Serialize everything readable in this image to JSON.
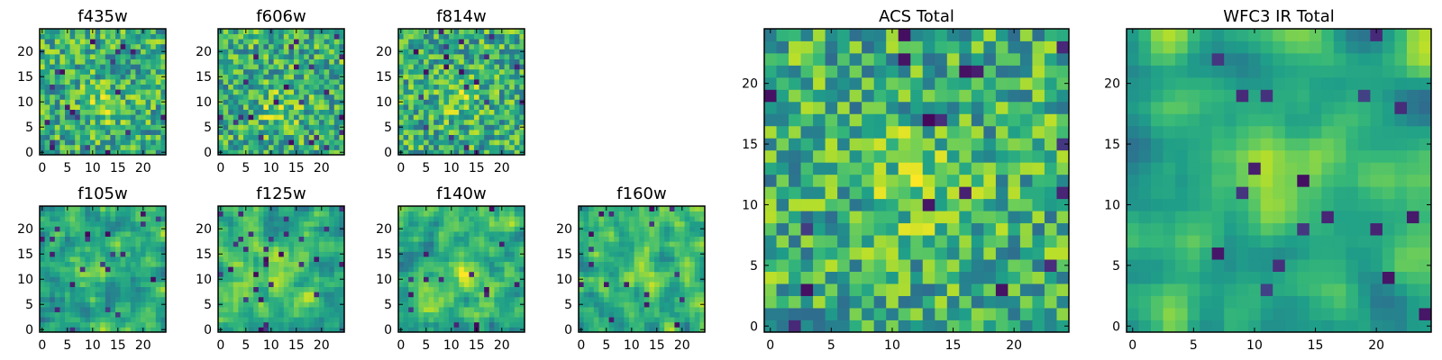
{
  "chart_data": [
    {
      "type": "heatmap",
      "title": "f435w",
      "grid_size": 25,
      "xticks": [
        0,
        5,
        10,
        15,
        20
      ],
      "yticks": [
        0,
        5,
        10,
        15,
        20
      ],
      "xlim": [
        0,
        25
      ],
      "ylim": [
        0,
        25
      ],
      "colormap": "viridis",
      "seed": 11,
      "smooth": 0,
      "hotspot": [
        0.5,
        0.4
      ]
    },
    {
      "type": "heatmap",
      "title": "f606w",
      "grid_size": 25,
      "xticks": [
        0,
        5,
        10,
        15,
        20
      ],
      "yticks": [
        0,
        5,
        10,
        15,
        20
      ],
      "xlim": [
        0,
        25
      ],
      "ylim": [
        0,
        25
      ],
      "colormap": "viridis",
      "seed": 23,
      "smooth": 0,
      "hotspot": [
        0.48,
        0.38
      ]
    },
    {
      "type": "heatmap",
      "title": "f814w",
      "grid_size": 25,
      "xticks": [
        0,
        5,
        10,
        15,
        20
      ],
      "yticks": [
        0,
        5,
        10,
        15,
        20
      ],
      "xlim": [
        0,
        25
      ],
      "ylim": [
        0,
        25
      ],
      "colormap": "viridis",
      "seed": 37,
      "smooth": 0,
      "hotspot": [
        0.5,
        0.45
      ]
    },
    {
      "type": "heatmap",
      "title": "f105w",
      "grid_size": 25,
      "xticks": [
        0,
        5,
        10,
        15,
        20
      ],
      "yticks": [
        0,
        5,
        10,
        15,
        20
      ],
      "xlim": [
        0,
        25
      ],
      "ylim": [
        0,
        25
      ],
      "colormap": "viridis",
      "seed": 41,
      "smooth": 1,
      "hotspot": [
        0.45,
        0.55
      ]
    },
    {
      "type": "heatmap",
      "title": "f125w",
      "grid_size": 25,
      "xticks": [
        0,
        5,
        10,
        15,
        20
      ],
      "yticks": [
        0,
        5,
        10,
        15,
        20
      ],
      "xlim": [
        0,
        25
      ],
      "ylim": [
        0,
        25
      ],
      "colormap": "viridis",
      "seed": 53,
      "smooth": 1,
      "hotspot": [
        0.5,
        0.45
      ]
    },
    {
      "type": "heatmap",
      "title": "f140w",
      "grid_size": 25,
      "xticks": [
        0,
        5,
        10,
        15,
        20
      ],
      "yticks": [
        0,
        5,
        10,
        15,
        20
      ],
      "xlim": [
        0,
        25
      ],
      "ylim": [
        0,
        25
      ],
      "colormap": "viridis",
      "seed": 67,
      "smooth": 1,
      "hotspot": [
        0.5,
        0.45
      ]
    },
    {
      "type": "heatmap",
      "title": "f160w",
      "grid_size": 25,
      "xticks": [
        0,
        5,
        10,
        15,
        20
      ],
      "yticks": [
        0,
        5,
        10,
        15,
        20
      ],
      "xlim": [
        0,
        25
      ],
      "ylim": [
        0,
        25
      ],
      "colormap": "viridis",
      "seed": 79,
      "smooth": 1,
      "hotspot": [
        0.5,
        0.48
      ]
    },
    {
      "type": "heatmap",
      "title": "ACS Total",
      "grid_size": 25,
      "xticks": [
        0,
        5,
        10,
        15,
        20
      ],
      "yticks": [
        0,
        5,
        10,
        15,
        20
      ],
      "xlim": [
        0,
        25
      ],
      "ylim": [
        0,
        25
      ],
      "colormap": "viridis",
      "seed": 97,
      "smooth": 0,
      "hotspot": [
        0.5,
        0.5
      ]
    },
    {
      "type": "heatmap",
      "title": "WFC3 IR Total",
      "grid_size": 25,
      "xticks": [
        0,
        5,
        10,
        15,
        20
      ],
      "yticks": [
        0,
        5,
        10,
        15,
        20
      ],
      "xlim": [
        0,
        25
      ],
      "ylim": [
        0,
        25
      ],
      "colormap": "viridis",
      "seed": 113,
      "smooth": 2,
      "hotspot": [
        0.48,
        0.52
      ]
    }
  ]
}
